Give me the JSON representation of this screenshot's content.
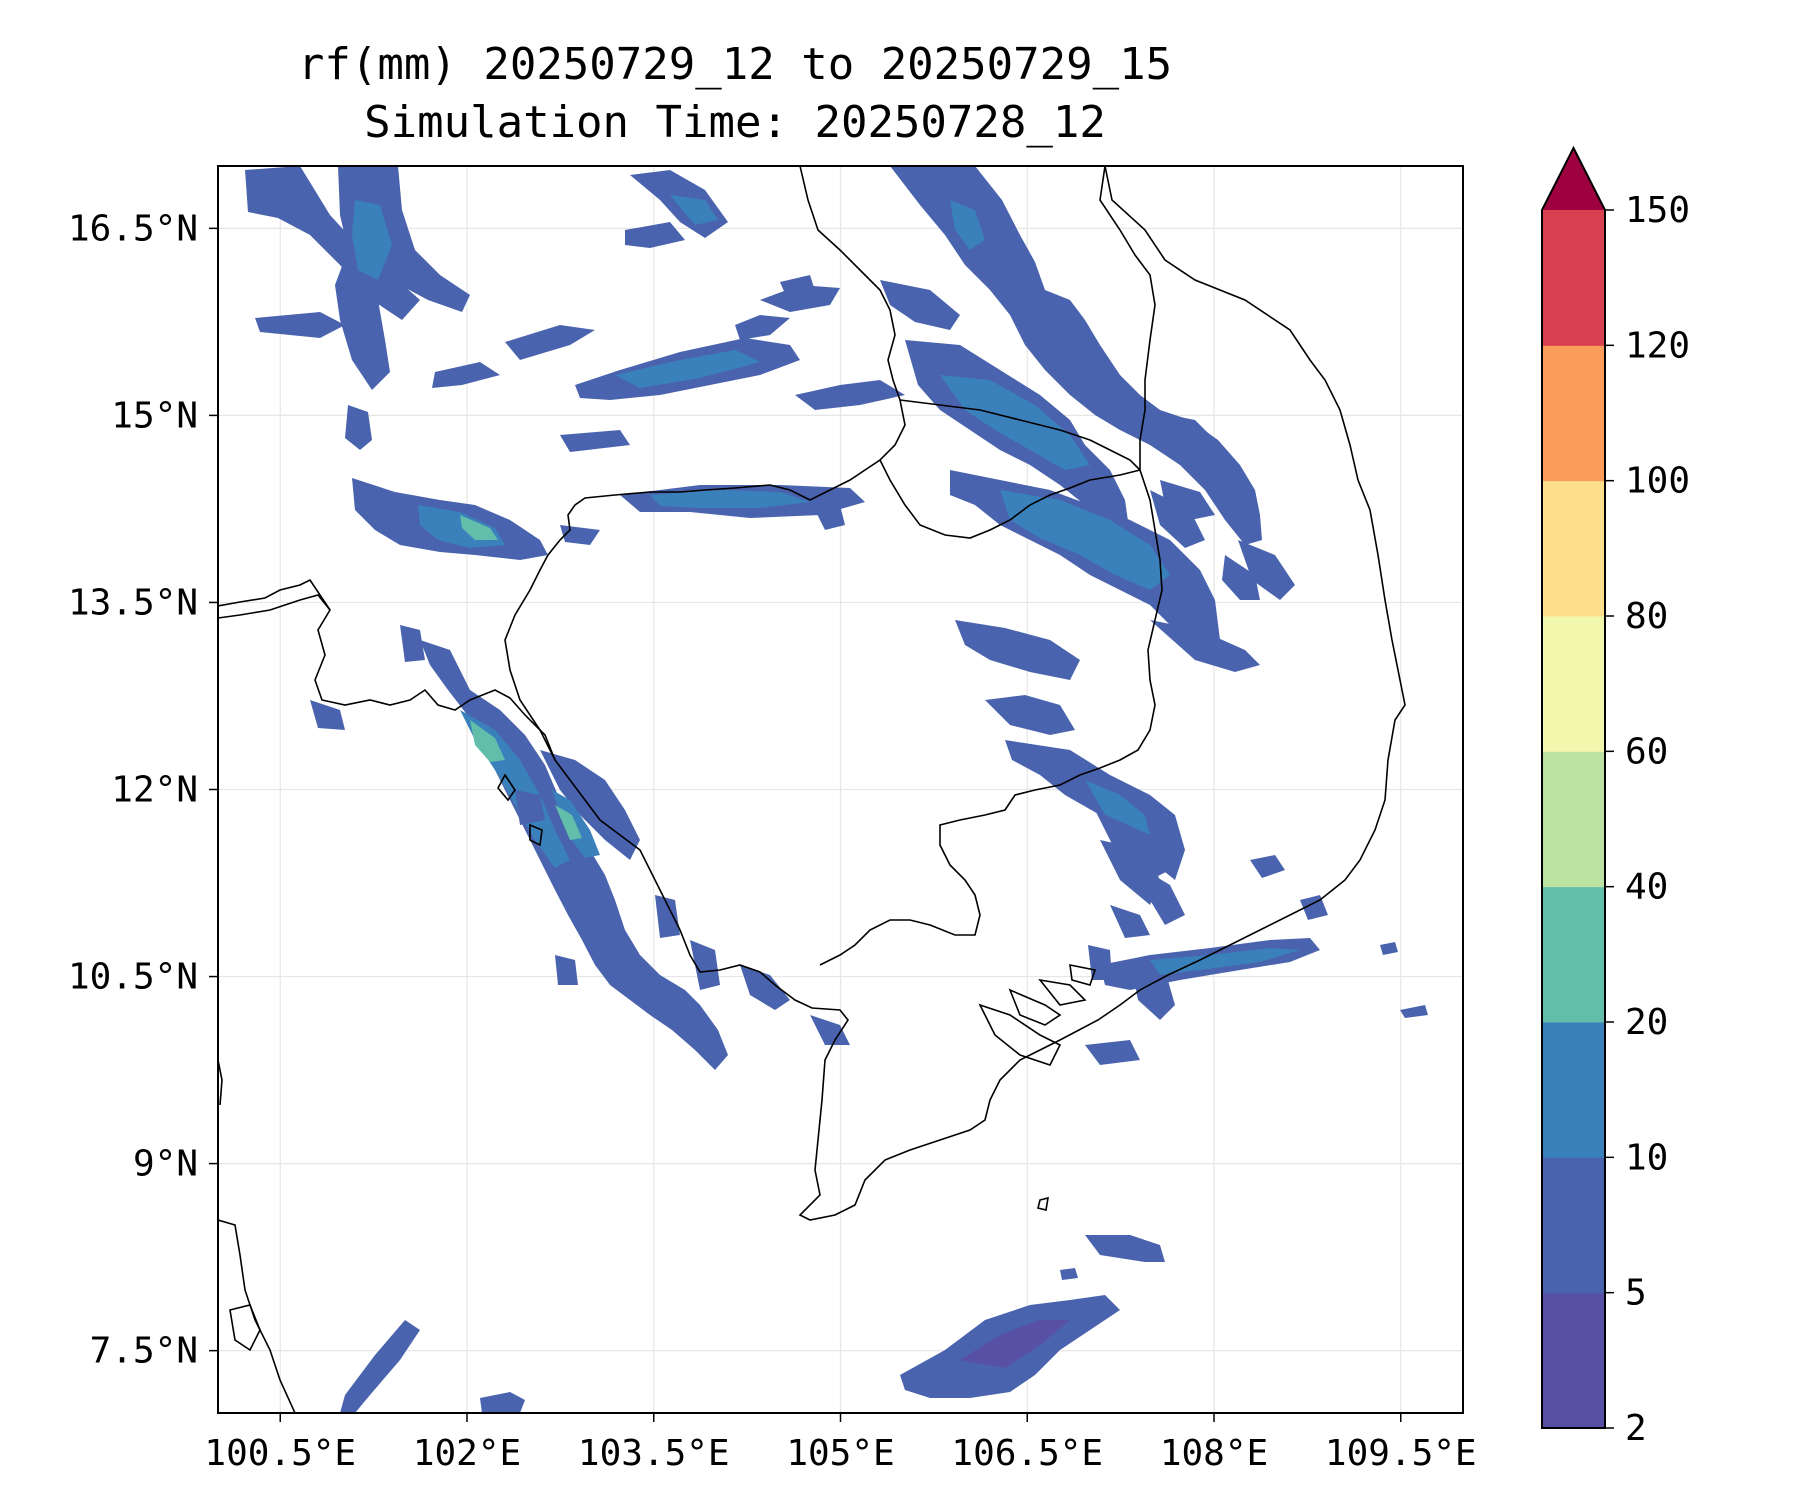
{
  "title": {
    "line1": "rf(mm) 20250729_12 to 20250729_15",
    "line2": "Simulation Time: 20250728_12"
  },
  "map": {
    "lon_range": [
      100.0,
      110.0
    ],
    "lat_range": [
      7.0,
      17.0
    ],
    "x_ticks": [
      {
        "value": 100.5,
        "label": "100.5°E"
      },
      {
        "value": 102.0,
        "label": "102°E"
      },
      {
        "value": 103.5,
        "label": "103.5°E"
      },
      {
        "value": 105.0,
        "label": "105°E"
      },
      {
        "value": 106.5,
        "label": "106.5°E"
      },
      {
        "value": 108.0,
        "label": "108°E"
      },
      {
        "value": 109.5,
        "label": "109.5°E"
      }
    ],
    "y_ticks": [
      {
        "value": 16.5,
        "label": "16.5°N"
      },
      {
        "value": 15.0,
        "label": "15°N"
      },
      {
        "value": 13.5,
        "label": "13.5°N"
      },
      {
        "value": 12.0,
        "label": "12°N"
      },
      {
        "value": 10.5,
        "label": "10.5°N"
      },
      {
        "value": 9.0,
        "label": "9°N"
      },
      {
        "value": 7.5,
        "label": "7.5°N"
      }
    ],
    "grid": true
  },
  "colorbar": {
    "levels": [
      {
        "label": "2",
        "color": "#5850a4"
      },
      {
        "label": "5",
        "color": "#4a63ae"
      },
      {
        "label": "10",
        "color": "#3a80ba"
      },
      {
        "label": "20",
        "color": "#62beab"
      },
      {
        "label": "40",
        "color": "#bde3a2"
      },
      {
        "label": "60",
        "color": "#f1f7ad"
      },
      {
        "label": "80",
        "color": "#fddf8c"
      },
      {
        "label": "100",
        "color": "#fa9c5a"
      },
      {
        "label": "120",
        "color": "#d83f4f"
      },
      {
        "label": "150",
        "color": "#9e0142"
      }
    ],
    "extend": "max"
  }
}
